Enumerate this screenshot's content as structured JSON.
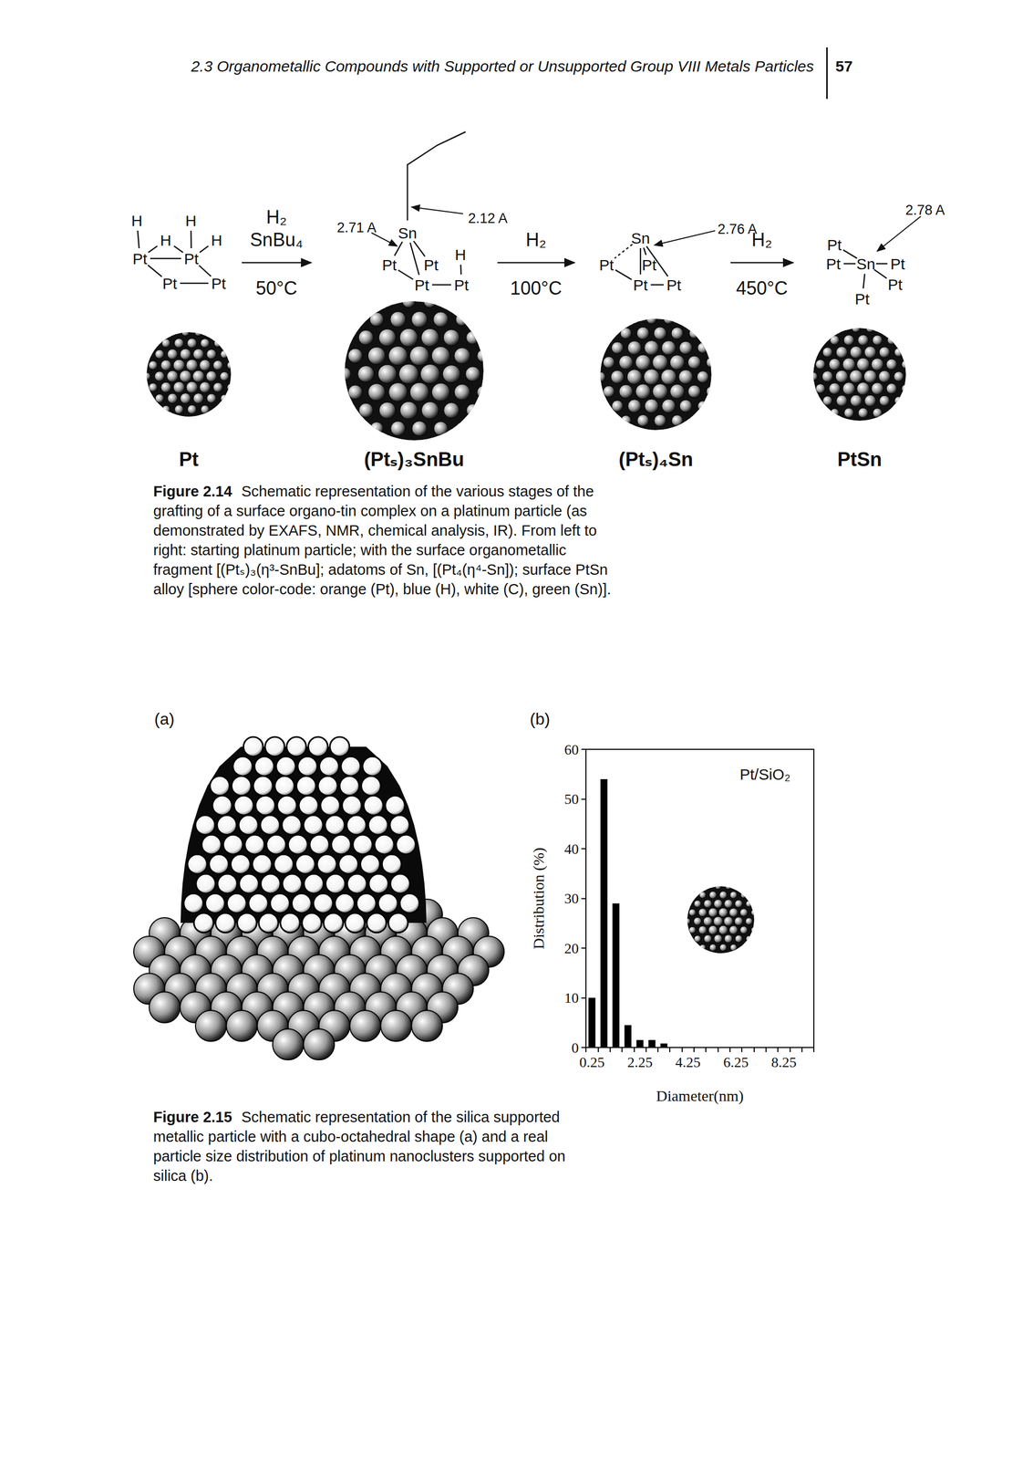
{
  "header": {
    "title": "2.3 Organometallic Compounds with Supported or Unsupported Group VIII Metals Particles",
    "page": "57"
  },
  "figure_2_14": {
    "structures": [
      {
        "atoms": [
          "H",
          "H",
          "H",
          "H",
          "Pt",
          "Pt",
          "Pt",
          "Pt"
        ]
      },
      {
        "atoms": [
          "Sn",
          "Pt",
          "Pt",
          "H",
          "Pt",
          "Pt"
        ],
        "distances": [
          "2.71 A",
          "2.12 A"
        ]
      },
      {
        "atoms": [
          "Sn",
          "Pt",
          "Pt",
          "Pt",
          "Pt"
        ],
        "distances": [
          "2.76 A"
        ]
      },
      {
        "atoms": [
          "Pt",
          "Pt",
          "Sn",
          "Pt",
          "Pt",
          "Pt"
        ],
        "distances": [
          "2.78 A"
        ]
      }
    ],
    "arrows": [
      {
        "reagents": [
          "H₂",
          "SnBu₄"
        ],
        "condition": "50°C"
      },
      {
        "reagents": [
          "H₂"
        ],
        "condition": "100°C"
      },
      {
        "reagents": [
          "H₂"
        ],
        "condition": "450°C"
      }
    ],
    "particles": [
      "Pt",
      "(Ptₛ)₃SnBu",
      "(Ptₛ)₄Sn",
      "PtSn"
    ],
    "caption": {
      "label": "Figure 2.14",
      "text": "Schematic representation of the various stages of the grafting of a surface organo-tin complex on a platinum particle (as demonstrated by EXAFS, NMR, chemical analysis, IR). From left to right: starting platinum particle; with the surface organometallic fragment [(Ptₛ)₃(η³-SnBu]; adatoms of Sn, [(Pt₄(η⁴-Sn]); surface PtSn alloy [sphere color-code: orange (Pt), blue (H), white (C), green (Sn)]."
    }
  },
  "figure_2_15": {
    "panels": [
      "(a)",
      "(b)"
    ],
    "caption": {
      "label": "Figure 2.15",
      "text": "Schematic representation of the silica supported metallic particle with a cubo-octahedral shape (a) and a real particle size distribution of platinum nanoclusters supported on silica (b)."
    }
  },
  "chart_data": {
    "type": "bar",
    "annotation": "Pt/SiO₂",
    "xlabel": "Diameter(nm)",
    "ylabel": "Distribution (%)",
    "categories": [
      "0.25",
      null,
      null,
      null,
      "2.25",
      null,
      null,
      null,
      "4.25",
      null,
      null,
      null,
      "6.25",
      null,
      null,
      null,
      "8.25",
      null,
      null
    ],
    "values": [
      10,
      54,
      29,
      4.5,
      1.5,
      1.5,
      0.8,
      0,
      0,
      0,
      0,
      0,
      0,
      0,
      0,
      0,
      0,
      0,
      0
    ],
    "color": "#000000",
    "ylim": [
      0,
      60
    ],
    "yticks": [
      0,
      10,
      20,
      30,
      40,
      50,
      60
    ],
    "grid": false,
    "data_labels": false
  }
}
